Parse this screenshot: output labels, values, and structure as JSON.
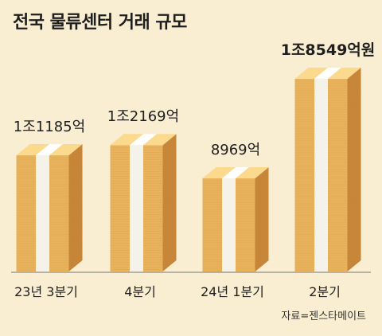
{
  "chart_data": {
    "type": "bar",
    "title": "전국 물류센터 거래 규모",
    "categories": [
      "23년 3분기",
      "4분기",
      "24년 1분기",
      "2분기"
    ],
    "values": [
      11185,
      12169,
      8969,
      18549
    ],
    "value_labels": [
      "1조1185억",
      "1조2169억",
      "8969억",
      "1조8549억원"
    ],
    "unit": "억원",
    "ylim": [
      0,
      20000
    ],
    "grid": false,
    "legend": "none",
    "source": "자료=젠스타메이트",
    "colors": {
      "front": "#e9b35d",
      "top": "#fbd98d",
      "side": "#c9883a",
      "band": "#f5f2ea",
      "band_top": "#ffffff",
      "line": "#d49a47",
      "baseline": "#777777"
    }
  }
}
